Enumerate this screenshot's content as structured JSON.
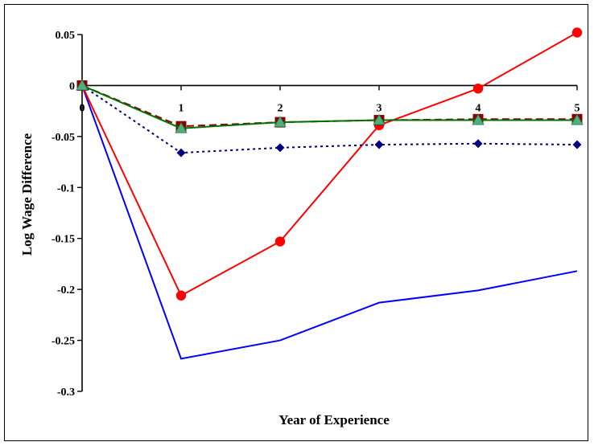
{
  "chart_data": {
    "type": "line",
    "title": "",
    "xlabel": "Year of Experience",
    "ylabel": "Log Wage Difference",
    "x": [
      0,
      1,
      2,
      3,
      4,
      5
    ],
    "x_tick_labels": [
      "0",
      "1",
      "2",
      "3",
      "4",
      "5"
    ],
    "ylim": [
      -0.3,
      0.05
    ],
    "y_ticks": [
      0.05,
      0,
      -0.05,
      -0.1,
      -0.15,
      -0.2,
      -0.25,
      -0.3
    ],
    "y_tick_labels": [
      "0.05",
      "0",
      "-0.05",
      "-0.1",
      "-0.15",
      "-0.2",
      "-0.25",
      "-0.3"
    ],
    "grid": false,
    "legend": "none",
    "series": [
      {
        "values": [
          0,
          -0.268,
          -0.25,
          -0.213,
          -0.201,
          -0.182
        ],
        "color": "#0000ff",
        "dash": "solid",
        "marker": "none"
      },
      {
        "values": [
          0,
          -0.206,
          -0.153,
          -0.039,
          -0.003,
          0.052
        ],
        "color": "#ff0000",
        "dash": "solid",
        "marker": "circle"
      },
      {
        "values": [
          0,
          -0.066,
          -0.061,
          -0.058,
          -0.057,
          -0.058
        ],
        "color": "#000080",
        "dash": "dotted",
        "marker": "diamond"
      },
      {
        "values": [
          0,
          -0.04,
          -0.036,
          -0.034,
          -0.033,
          -0.033
        ],
        "color": "#8b0000",
        "dash": "dashed",
        "marker": "square"
      },
      {
        "values": [
          0,
          -0.042,
          -0.036,
          -0.034,
          -0.034,
          -0.034
        ],
        "color": "#007000",
        "dash": "solid",
        "marker": "triangle",
        "marker_color": "#4caf7d"
      }
    ]
  }
}
